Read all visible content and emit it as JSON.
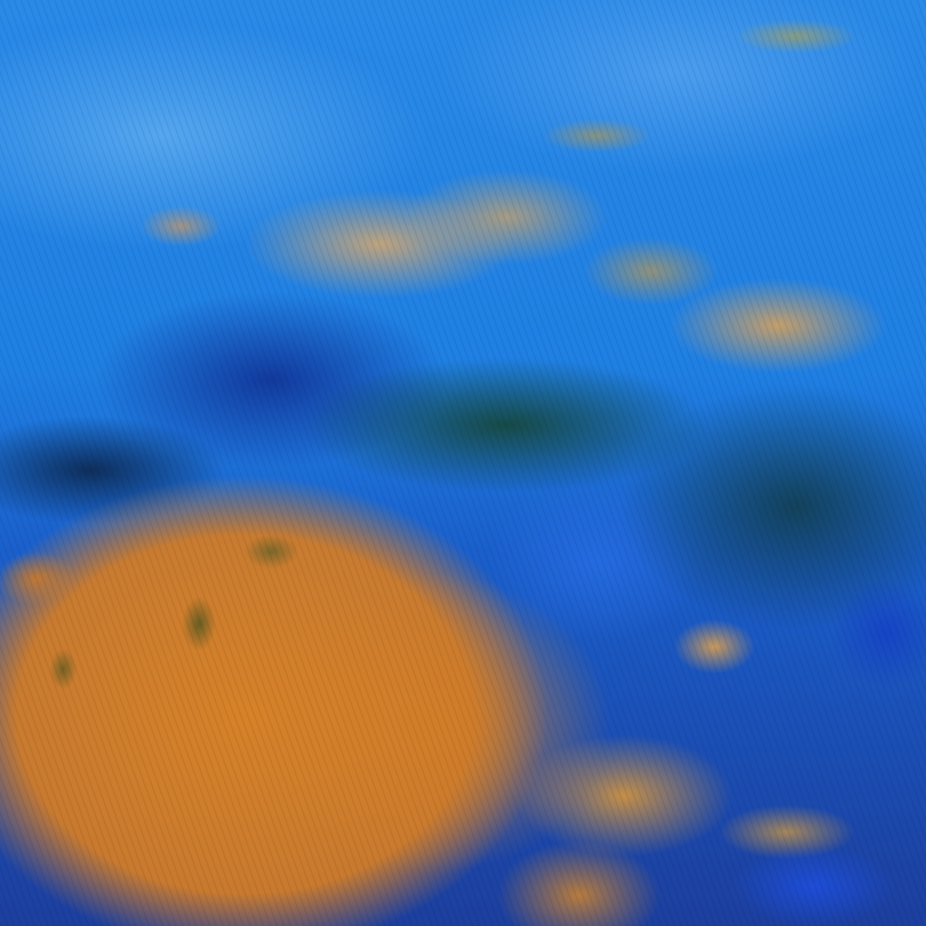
{
  "image": {
    "type": "false-color satellite cloud imagery",
    "colors": {
      "clear_sky_blue": "#1f80e4",
      "deep_blue": "#1c3f9f",
      "tan_cloud": "#c8a578",
      "orange_cloud": "#d78228",
      "dark_green_shadow": "#143c14"
    },
    "regions": [
      "upper-blue-field",
      "tan-cloud-band",
      "dark-convective-band",
      "lower-left-orange-cloud-mass",
      "lower-right-blue-streaks"
    ]
  }
}
